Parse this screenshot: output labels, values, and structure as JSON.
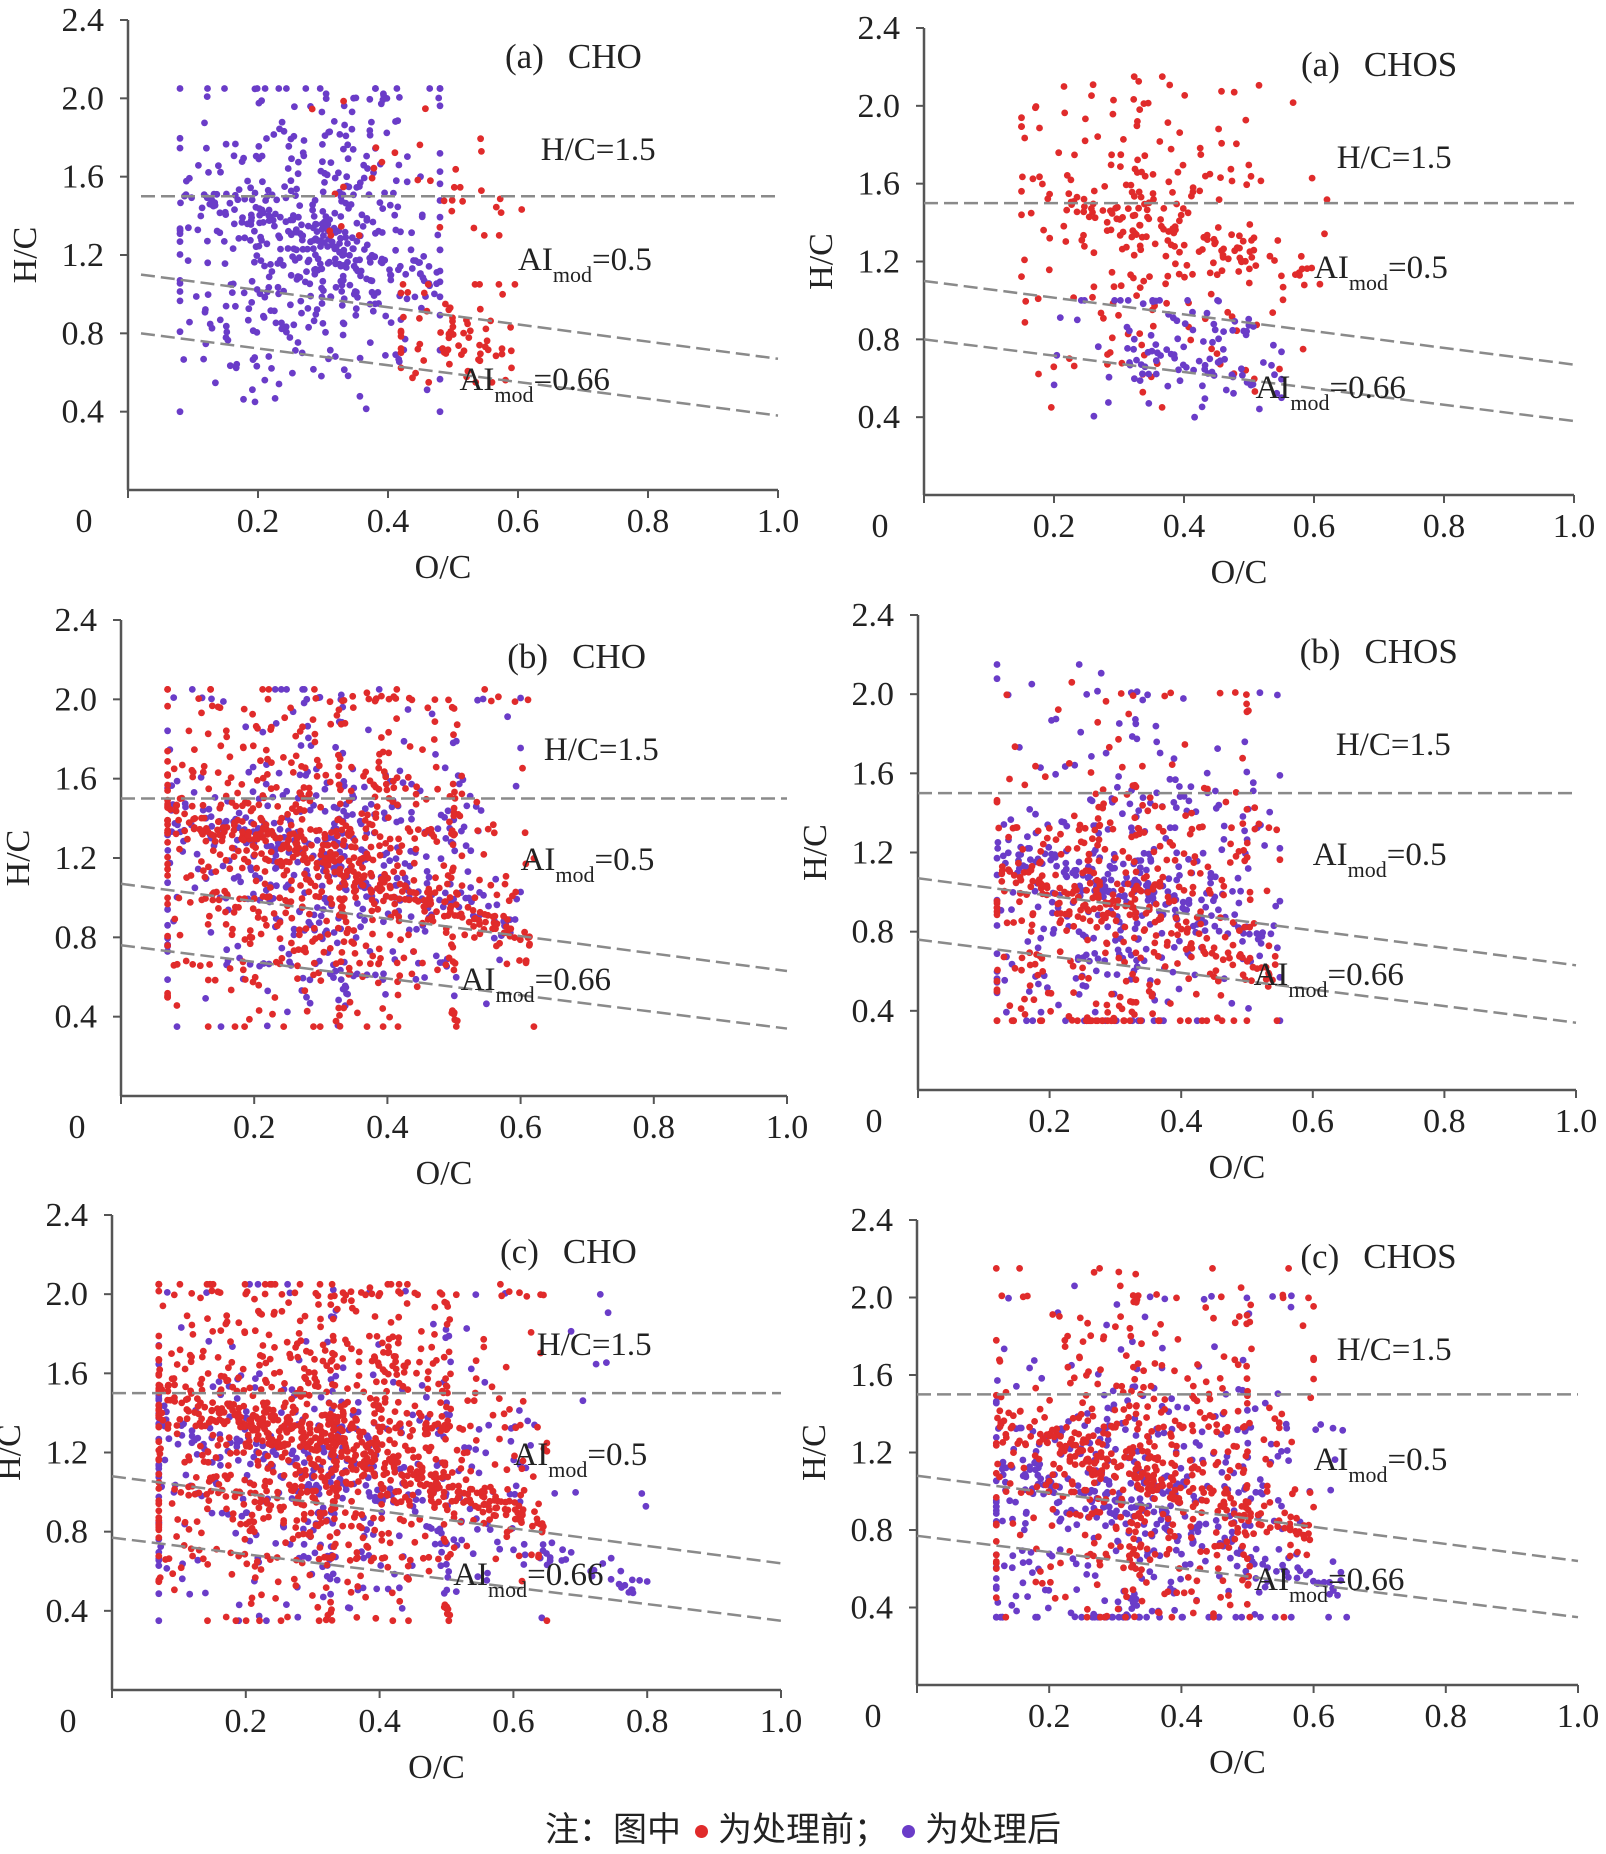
{
  "colors": {
    "before": "#e02b2b",
    "after": "#6a3cc8",
    "axis": "#555555",
    "ref_line": "#8a8a8a"
  },
  "note": {
    "prefix": "注：图中",
    "before_label": "为处理前；",
    "after_label": "为处理后"
  },
  "chart_data": [
    {
      "type": "scatter",
      "panel": "(a)",
      "title": "CHO",
      "xlabel": "O/C",
      "ylabel": "H/C",
      "xlim": [
        0,
        1.0
      ],
      "ylim": [
        0,
        2.4
      ],
      "xticks": [
        "0",
        "0.2",
        "0.4",
        "0.6",
        "0.8",
        "1.0"
      ],
      "yticks": [
        "0.4",
        "0.8",
        "1.2",
        "1.6",
        "2.0",
        "2.4"
      ],
      "annotations": {
        "hc": "H/C=1.5",
        "ai05": [
          "AI",
          "mod",
          "=0.5"
        ],
        "ai066": [
          "AI",
          "mod",
          "=0.66"
        ]
      },
      "ref_lines": {
        "hc": [
          [
            0.02,
            1.5
          ],
          [
            1.0,
            1.5
          ]
        ],
        "ai05": [
          [
            0.02,
            1.1
          ],
          [
            1.0,
            0.67
          ]
        ],
        "ai066": [
          [
            0.02,
            0.8
          ],
          [
            1.0,
            0.38
          ]
        ]
      },
      "series": [
        {
          "name": "处理后",
          "color": "after",
          "clusters": [
            {
              "x": [
                0.08,
                0.48
              ],
              "y": [
                0.4,
                2.05
              ],
              "cx": 0.27,
              "cy": 1.3,
              "n": 560
            }
          ]
        },
        {
          "name": "处理前",
          "color": "before",
          "clusters": [
            {
              "x": [
                0.42,
                0.6
              ],
              "y": [
                0.55,
                1.05
              ],
              "cx": 0.5,
              "cy": 0.8,
              "n": 70
            },
            {
              "x": [
                0.28,
                0.62
              ],
              "y": [
                1.3,
                2.05
              ],
              "cx": 0.42,
              "cy": 1.6,
              "n": 35
            }
          ]
        }
      ]
    },
    {
      "type": "scatter",
      "panel": "(a)",
      "title": "CHOS",
      "xlabel": "O/C",
      "ylabel": "H/C",
      "xlim": [
        0,
        1.0
      ],
      "ylim": [
        0,
        2.4
      ],
      "xticks": [
        "0",
        "0.2",
        "0.4",
        "0.6",
        "0.8",
        "1.0"
      ],
      "yticks": [
        "0.4",
        "0.8",
        "1.2",
        "1.6",
        "2.0",
        "2.4"
      ],
      "annotations": {
        "hc": "H/C=1.5",
        "ai05": [
          "AI",
          "mod",
          "=0.5"
        ],
        "ai066": [
          "AI",
          "mod",
          "=0.66"
        ]
      },
      "ref_lines": {
        "hc": [
          [
            0.0,
            1.5
          ],
          [
            1.0,
            1.5
          ]
        ],
        "ai05": [
          [
            0.0,
            1.1
          ],
          [
            1.0,
            0.67
          ]
        ],
        "ai066": [
          [
            0.0,
            0.8
          ],
          [
            1.0,
            0.38
          ]
        ]
      },
      "series": [
        {
          "name": "处理前",
          "color": "before",
          "clusters": [
            {
              "x": [
                0.15,
                0.62
              ],
              "y": [
                0.45,
                2.15
              ],
              "cx": 0.35,
              "cy": 1.4,
              "n": 300
            }
          ]
        },
        {
          "name": "处理后",
          "color": "after",
          "clusters": [
            {
              "x": [
                0.2,
                0.55
              ],
              "y": [
                0.4,
                1.0
              ],
              "cx": 0.4,
              "cy": 0.7,
              "n": 110
            }
          ]
        }
      ]
    },
    {
      "type": "scatter",
      "panel": "(b)",
      "title": "CHO",
      "xlabel": "O/C",
      "ylabel": "H/C",
      "xlim": [
        0,
        1.0
      ],
      "ylim": [
        0,
        2.4
      ],
      "xticks": [
        "0",
        "0.2",
        "0.4",
        "0.6",
        "0.8",
        "1.0"
      ],
      "yticks": [
        "0.4",
        "0.8",
        "1.2",
        "1.6",
        "2.0",
        "2.4"
      ],
      "annotations": {
        "hc": "H/C=1.5",
        "ai05": [
          "AI",
          "mod",
          "=0.5"
        ],
        "ai066": [
          "AI",
          "mod",
          "=0.66"
        ]
      },
      "ref_lines": {
        "hc": [
          [
            0.0,
            1.5
          ],
          [
            1.0,
            1.5
          ]
        ],
        "ai05": [
          [
            0.0,
            1.07
          ],
          [
            1.0,
            0.63
          ]
        ],
        "ai066": [
          [
            0.0,
            0.76
          ],
          [
            1.0,
            0.34
          ]
        ]
      },
      "series": [
        {
          "name": "处理后",
          "color": "after",
          "clusters": [
            {
              "x": [
                0.07,
                0.6
              ],
              "y": [
                0.35,
                2.05
              ],
              "cx": 0.3,
              "cy": 1.2,
              "n": 500
            }
          ]
        },
        {
          "name": "处理前",
          "color": "before",
          "clusters": [
            {
              "x": [
                0.07,
                0.62
              ],
              "y": [
                0.35,
                2.05
              ],
              "cx": 0.28,
              "cy": 1.2,
              "n": 850
            }
          ]
        }
      ]
    },
    {
      "type": "scatter",
      "panel": "(b)",
      "title": "CHOS",
      "xlabel": "O/C",
      "ylabel": "H/C",
      "xlim": [
        0,
        1.0
      ],
      "ylim": [
        0,
        2.4
      ],
      "xticks": [
        "0",
        "0.2",
        "0.4",
        "0.6",
        "0.8",
        "1.0"
      ],
      "yticks": [
        "0.4",
        "0.8",
        "1.2",
        "1.6",
        "2.0",
        "2.4"
      ],
      "annotations": {
        "hc": "H/C=1.5",
        "ai05": [
          "AI",
          "mod",
          "=0.5"
        ],
        "ai066": [
          "AI",
          "mod",
          "=0.66"
        ]
      },
      "ref_lines": {
        "hc": [
          [
            0.0,
            1.5
          ],
          [
            1.0,
            1.5
          ]
        ],
        "ai05": [
          [
            0.0,
            1.07
          ],
          [
            1.0,
            0.63
          ]
        ],
        "ai066": [
          [
            0.0,
            0.76
          ],
          [
            1.0,
            0.34
          ]
        ]
      },
      "series": [
        {
          "name": "处理后",
          "color": "after",
          "clusters": [
            {
              "x": [
                0.12,
                0.55
              ],
              "y": [
                0.35,
                2.15
              ],
              "cx": 0.32,
              "cy": 1.0,
              "n": 420
            }
          ]
        },
        {
          "name": "处理前",
          "color": "before",
          "clusters": [
            {
              "x": [
                0.12,
                0.55
              ],
              "y": [
                0.35,
                2.15
              ],
              "cx": 0.3,
              "cy": 0.9,
              "n": 480
            }
          ]
        }
      ]
    },
    {
      "type": "scatter",
      "panel": "(c)",
      "title": "CHO",
      "xlabel": "O/C",
      "ylabel": "H/C",
      "xlim": [
        0,
        1.0
      ],
      "ylim": [
        0,
        2.4
      ],
      "xticks": [
        "0",
        "0.2",
        "0.4",
        "0.6",
        "0.8",
        "1.0"
      ],
      "yticks": [
        "0.4",
        "0.8",
        "1.2",
        "1.6",
        "2.0",
        "2.4"
      ],
      "annotations": {
        "hc": "H/C=1.5",
        "ai05": [
          "AI",
          "mod",
          "=0.5"
        ],
        "ai066": [
          "AI",
          "mod",
          "=0.66"
        ]
      },
      "ref_lines": {
        "hc": [
          [
            0.0,
            1.5
          ],
          [
            1.0,
            1.5
          ]
        ],
        "ai05": [
          [
            0.0,
            1.08
          ],
          [
            1.0,
            0.64
          ]
        ],
        "ai066": [
          [
            0.0,
            0.77
          ],
          [
            1.0,
            0.35
          ]
        ]
      },
      "series": [
        {
          "name": "处理后",
          "color": "after",
          "clusters": [
            {
              "x": [
                0.07,
                0.8
              ],
              "y": [
                0.35,
                2.05
              ],
              "cx": 0.3,
              "cy": 1.1,
              "n": 480
            }
          ]
        },
        {
          "name": "处理前",
          "color": "before",
          "clusters": [
            {
              "x": [
                0.07,
                0.65
              ],
              "y": [
                0.35,
                2.05
              ],
              "cx": 0.3,
              "cy": 1.25,
              "n": 1200
            }
          ]
        }
      ]
    },
    {
      "type": "scatter",
      "panel": "(c)",
      "title": "CHOS",
      "xlabel": "O/C",
      "ylabel": "H/C",
      "xlim": [
        0,
        1.0
      ],
      "ylim": [
        0,
        2.4
      ],
      "xticks": [
        "0",
        "0.2",
        "0.4",
        "0.6",
        "0.8",
        "1.0"
      ],
      "yticks": [
        "0.4",
        "0.8",
        "1.2",
        "1.6",
        "2.0",
        "2.4"
      ],
      "annotations": {
        "hc": "H/C=1.5",
        "ai05": [
          "AI",
          "mod",
          "=0.5"
        ],
        "ai066": [
          "AI",
          "mod",
          "=0.66"
        ]
      },
      "ref_lines": {
        "hc": [
          [
            0.0,
            1.5
          ],
          [
            1.0,
            1.5
          ]
        ],
        "ai05": [
          [
            0.0,
            1.08
          ],
          [
            1.0,
            0.64
          ]
        ],
        "ai066": [
          [
            0.0,
            0.77
          ],
          [
            1.0,
            0.35
          ]
        ]
      },
      "series": [
        {
          "name": "处理后",
          "color": "after",
          "clusters": [
            {
              "x": [
                0.12,
                0.65
              ],
              "y": [
                0.35,
                2.15
              ],
              "cx": 0.32,
              "cy": 0.9,
              "n": 520
            }
          ]
        },
        {
          "name": "处理前",
          "color": "before",
          "clusters": [
            {
              "x": [
                0.12,
                0.6
              ],
              "y": [
                0.35,
                2.15
              ],
              "cx": 0.33,
              "cy": 1.1,
              "n": 640
            }
          ]
        }
      ]
    }
  ]
}
